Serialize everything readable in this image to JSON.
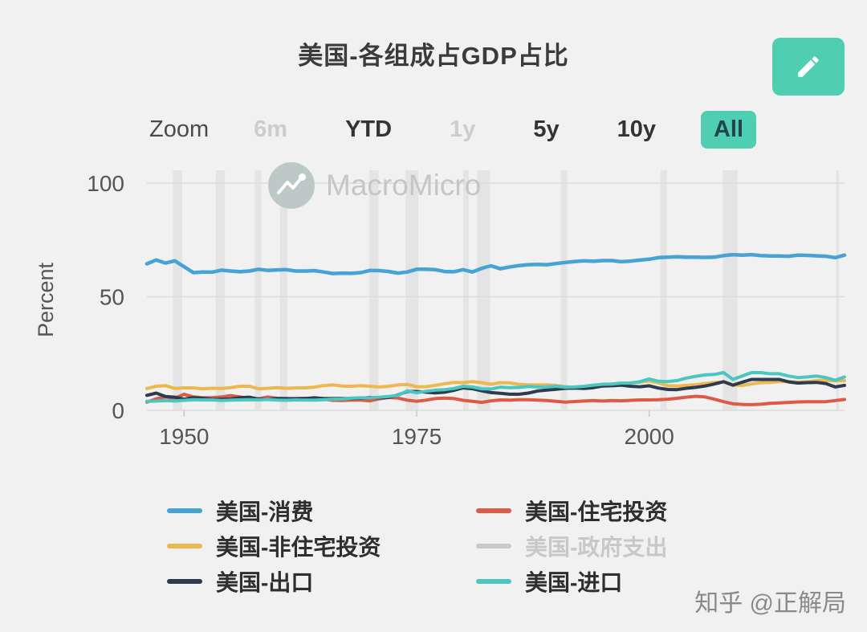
{
  "page": {
    "background": "#f1f1f1"
  },
  "header": {
    "title": "美国-各组成占GDP占比",
    "edit_button": {
      "icon": "pencil-icon",
      "color": "#50ceb1"
    }
  },
  "toolbar": {
    "zoom_label": "Zoom",
    "buttons": [
      {
        "label": "6m",
        "state": "disabled"
      },
      {
        "label": "YTD",
        "state": "normal"
      },
      {
        "label": "1y",
        "state": "disabled"
      },
      {
        "label": "5y",
        "state": "normal"
      },
      {
        "label": "10y",
        "state": "normal"
      },
      {
        "label": "All",
        "state": "selected"
      }
    ],
    "selected_bg": "#50ceb1"
  },
  "watermark": {
    "logo": "macromicro-logo",
    "text": "MacroMicro"
  },
  "footer_watermark": "知乎 @正解局",
  "chart_data": {
    "type": "line",
    "title": "美国-各组成占GDP占比",
    "ylabel": "Percent",
    "ylim": [
      0,
      105
    ],
    "y_ticks": [
      0,
      50,
      100
    ],
    "x_ticks": [
      1950,
      1975,
      2000
    ],
    "x_range": [
      1946,
      2021
    ],
    "grid_on": true,
    "grid_color": "#dcdcdc",
    "band_color": "#e4e4e4",
    "legend_position": "bottom",
    "years": [
      1946,
      1947,
      1948,
      1949,
      1950,
      1951,
      1952,
      1953,
      1954,
      1955,
      1956,
      1957,
      1958,
      1959,
      1960,
      1961,
      1962,
      1963,
      1964,
      1965,
      1966,
      1967,
      1968,
      1969,
      1970,
      1971,
      1972,
      1973,
      1974,
      1975,
      1976,
      1977,
      1978,
      1979,
      1980,
      1981,
      1982,
      1983,
      1984,
      1985,
      1986,
      1987,
      1988,
      1989,
      1990,
      1991,
      1992,
      1993,
      1994,
      1995,
      1996,
      1997,
      1998,
      1999,
      2000,
      2001,
      2002,
      2003,
      2004,
      2005,
      2006,
      2007,
      2008,
      2009,
      2010,
      2011,
      2012,
      2013,
      2014,
      2015,
      2016,
      2017,
      2018,
      2019,
      2020,
      2021
    ],
    "recession_bands": [
      [
        1948.8,
        1949.8
      ],
      [
        1953.4,
        1954.4
      ],
      [
        1957.6,
        1958.3
      ],
      [
        1960.3,
        1961.1
      ],
      [
        1969.9,
        1970.9
      ],
      [
        1973.8,
        1975.2
      ],
      [
        1980.0,
        1980.6
      ],
      [
        1981.5,
        1982.9
      ],
      [
        1990.5,
        1991.2
      ],
      [
        2001.2,
        2001.9
      ],
      [
        2007.9,
        2009.5
      ],
      [
        2020.1,
        2020.4
      ]
    ],
    "series": [
      {
        "name": "美国-消费",
        "color": "#45a3d6",
        "visible": true,
        "width": 4.5,
        "values": [
          64.5,
          66.2,
          64.8,
          65.8,
          63.2,
          60.6,
          60.9,
          60.8,
          61.7,
          61.3,
          61.0,
          61.3,
          62.1,
          61.6,
          61.8,
          61.9,
          61.3,
          61.3,
          61.5,
          60.9,
          60.2,
          60.4,
          60.3,
          60.6,
          61.6,
          61.5,
          61.1,
          60.4,
          60.9,
          62.1,
          62.1,
          61.9,
          61.1,
          61.0,
          61.9,
          60.9,
          62.5,
          63.6,
          62.3,
          63.1,
          63.7,
          64.1,
          64.2,
          64.1,
          64.6,
          65.1,
          65.5,
          65.8,
          65.6,
          65.9,
          65.9,
          65.4,
          65.7,
          66.1,
          66.5,
          67.2,
          67.4,
          67.6,
          67.4,
          67.4,
          67.3,
          67.4,
          68.1,
          68.5,
          68.3,
          68.5,
          68.1,
          67.9,
          67.9,
          67.8,
          68.3,
          68.2,
          68.0,
          67.8,
          67.2,
          68.3
        ]
      },
      {
        "name": "美国-住宅投资",
        "color": "#dd5a47",
        "visible": true,
        "width": 4,
        "values": [
          3.6,
          5.1,
          5.9,
          5.3,
          7.1,
          5.9,
          5.6,
          5.6,
          5.9,
          6.5,
          5.9,
          5.3,
          5.1,
          5.9,
          5.3,
          5.1,
          5.2,
          5.3,
          5.1,
          4.9,
          4.4,
          4.3,
          4.5,
          4.5,
          4.2,
          5.1,
          5.7,
          5.4,
          4.5,
          4.0,
          4.5,
          5.2,
          5.4,
          5.2,
          4.4,
          4.0,
          3.5,
          4.2,
          4.6,
          4.5,
          4.7,
          4.7,
          4.5,
          4.3,
          4.0,
          3.6,
          3.9,
          4.1,
          4.3,
          4.1,
          4.3,
          4.2,
          4.4,
          4.6,
          4.6,
          4.7,
          4.9,
          5.3,
          5.8,
          6.2,
          5.9,
          4.9,
          3.8,
          2.9,
          2.6,
          2.5,
          2.7,
          3.1,
          3.3,
          3.5,
          3.7,
          3.8,
          3.8,
          3.8,
          4.3,
          4.8
        ]
      },
      {
        "name": "美国-非住宅投资",
        "color": "#ecb84f",
        "visible": true,
        "width": 4,
        "values": [
          9.6,
          10.6,
          10.9,
          9.6,
          9.9,
          9.9,
          9.5,
          9.7,
          9.6,
          10.0,
          10.6,
          10.6,
          9.5,
          9.7,
          10.0,
          9.7,
          9.9,
          9.9,
          10.2,
          10.9,
          11.2,
          10.7,
          10.6,
          10.9,
          10.6,
          10.3,
          10.6,
          11.2,
          11.4,
          10.4,
          10.4,
          11.0,
          11.7,
          12.3,
          12.2,
          12.6,
          12.2,
          11.5,
          12.2,
          12.1,
          11.5,
          11.2,
          11.2,
          11.2,
          11.0,
          10.4,
          10.0,
          10.2,
          10.5,
          10.9,
          11.3,
          11.8,
          12.1,
          12.4,
          12.9,
          12.1,
          10.9,
          10.7,
          11.0,
          11.3,
          11.8,
          12.3,
          12.5,
          11.1,
          11.0,
          11.6,
          12.2,
          12.3,
          12.7,
          12.7,
          12.4,
          12.6,
          13.1,
          13.2,
          12.9,
          13.1
        ]
      },
      {
        "name": "美国-政府支出",
        "color": "#c9c9c9",
        "visible": false,
        "width": 4,
        "values": []
      },
      {
        "name": "美国-出口",
        "color": "#2e3a4d",
        "visible": true,
        "width": 4,
        "values": [
          6.6,
          7.6,
          6.1,
          5.8,
          4.9,
          5.6,
          5.3,
          4.8,
          4.9,
          5.0,
          5.6,
          5.8,
          5.0,
          4.8,
          5.2,
          5.2,
          5.1,
          5.2,
          5.5,
          5.2,
          5.2,
          5.2,
          5.2,
          5.3,
          5.7,
          5.5,
          5.7,
          6.8,
          8.3,
          8.3,
          8.0,
          7.7,
          8.0,
          8.8,
          9.9,
          9.5,
          8.6,
          7.8,
          7.5,
          7.1,
          7.1,
          7.6,
          8.5,
          8.9,
          9.3,
          9.7,
          9.8,
          9.6,
          10.0,
          10.7,
          10.8,
          11.1,
          10.6,
          10.4,
          10.8,
          9.8,
          9.2,
          9.1,
          9.7,
          10.1,
          10.7,
          11.6,
          12.6,
          11.1,
          12.4,
          13.6,
          13.6,
          13.6,
          13.6,
          12.5,
          12.0,
          12.2,
          12.3,
          11.8,
          10.3,
          11.0
        ]
      },
      {
        "name": "美国-进口",
        "color": "#4cc6c0",
        "visible": true,
        "width": 4,
        "values": [
          4.0,
          4.1,
          4.3,
          4.1,
          4.4,
          4.7,
          4.6,
          4.6,
          4.3,
          4.5,
          4.6,
          4.7,
          4.6,
          4.8,
          4.5,
          4.4,
          4.6,
          4.5,
          4.5,
          4.7,
          4.9,
          5.0,
          5.4,
          5.5,
          5.6,
          5.8,
          6.1,
          6.6,
          8.6,
          7.7,
          8.4,
          8.9,
          9.1,
          9.6,
          10.6,
          10.3,
          9.5,
          9.4,
          10.2,
          10.0,
          10.1,
          10.5,
          10.3,
          10.3,
          10.6,
          10.2,
          10.3,
          10.6,
          11.1,
          11.5,
          11.6,
          12.0,
          12.0,
          12.6,
          13.8,
          12.8,
          12.7,
          13.1,
          14.2,
          15.0,
          15.6,
          15.8,
          16.6,
          13.6,
          15.1,
          16.6,
          16.6,
          16.1,
          16.1,
          15.1,
          14.4,
          14.7,
          15.1,
          14.4,
          13.2,
          14.7
        ]
      }
    ]
  }
}
